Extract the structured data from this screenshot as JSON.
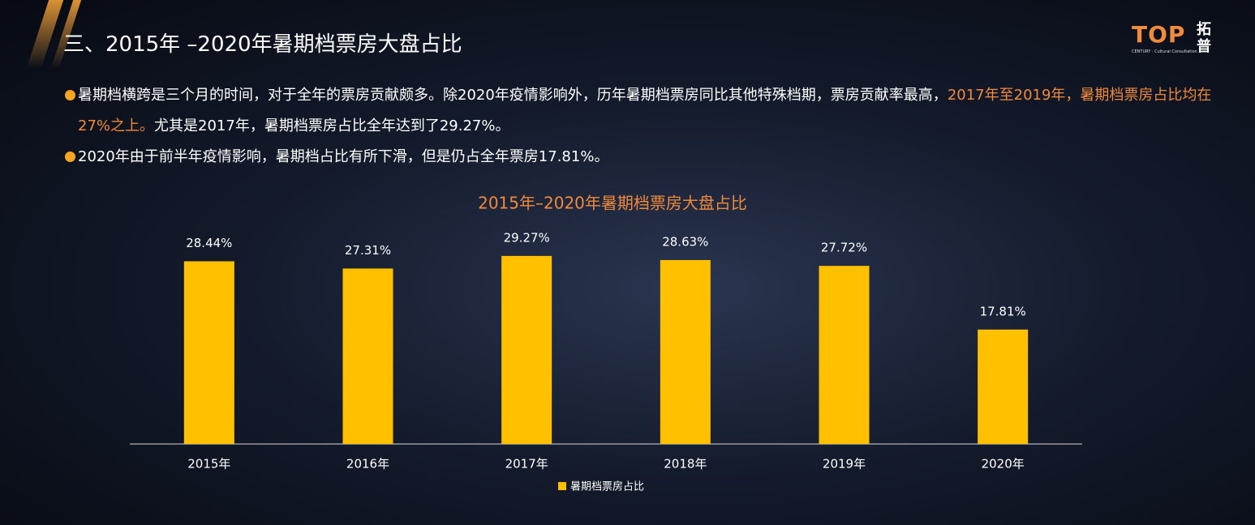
{
  "header": {
    "title": "三、2015年 –2020年暑期档票房大盘占比"
  },
  "logo": {
    "mark": "TOP",
    "name": "拓普",
    "tagline": "CENTURY · Cultural Consultation"
  },
  "bullets": [
    {
      "text": "暑期档横跨是三个月的时间，对于全年的票房贡献颇多。除2020年疫情影响外，历年暑期档票房同比其他特殊档期，票房贡献率最高，",
      "highlight": "2017年至2019年，暑期档票房占比均在27%之上。",
      "after": "尤其是2017年，暑期档票房占比全年达到了29.27%。"
    },
    {
      "text": "2020年由于前半年疫情影响，暑期档占比有所下滑，但是仍占全年票房17.81%。"
    }
  ],
  "chart_data": {
    "type": "bar",
    "title": "2015年–2020年暑期档票房大盘占比",
    "categories": [
      "2015年",
      "2016年",
      "2017年",
      "2018年",
      "2019年",
      "2020年"
    ],
    "series": [
      {
        "name": "暑期档票房占比",
        "color": "#ffc000",
        "values": [
          28.44,
          27.31,
          29.27,
          28.63,
          27.72,
          17.81
        ],
        "value_labels": [
          "28.44%",
          "27.31%",
          "29.27%",
          "28.63%",
          "27.72%",
          "17.81%"
        ]
      }
    ]
  }
}
